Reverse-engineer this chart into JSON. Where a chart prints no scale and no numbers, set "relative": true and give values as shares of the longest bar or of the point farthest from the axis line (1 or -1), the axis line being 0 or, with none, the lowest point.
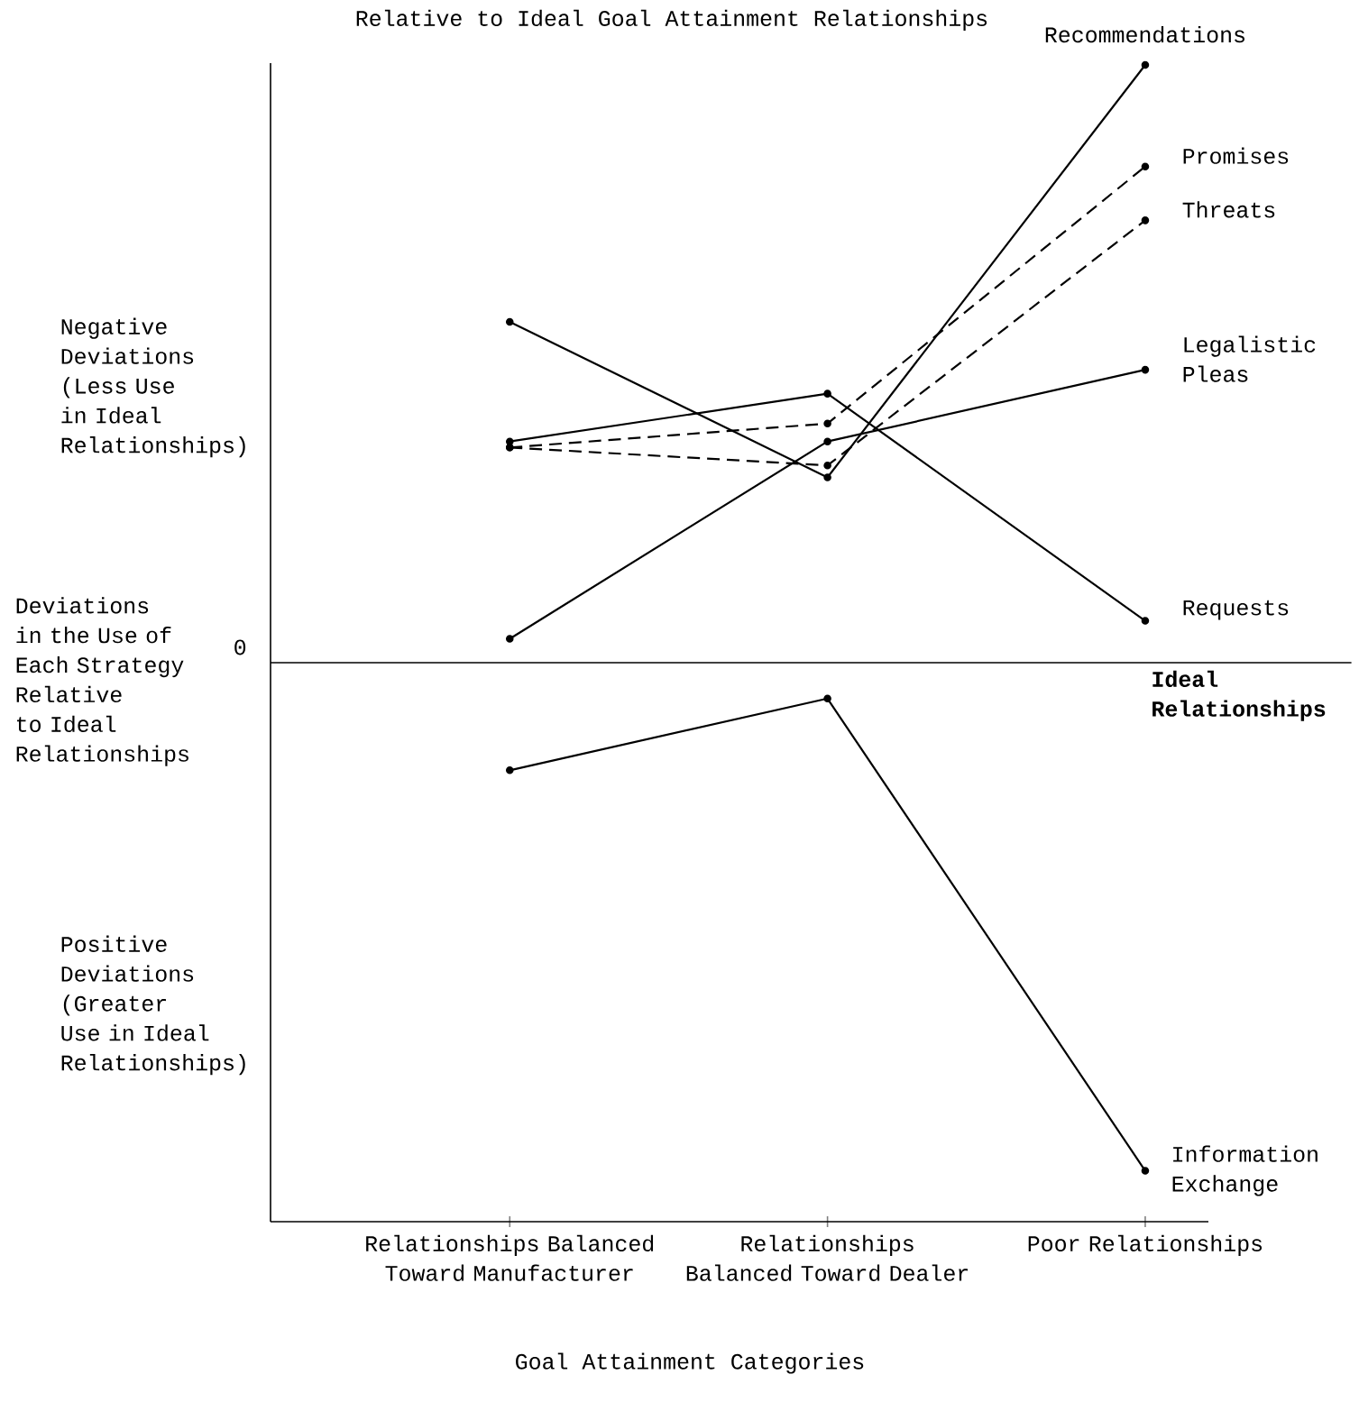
{
  "chart_data": {
    "type": "line",
    "relative": true,
    "title": "Relative to Ideal Goal Attainment Relationships",
    "xlabel": "Goal Attainment Categories",
    "ylabel": "Deviations in the Use of Each Strategy Relative to Ideal Relationships",
    "categories": [
      "Relationships Balanced Toward Manufacturer",
      "Relationships Balanced Toward Dealer",
      "Poor Relationships"
    ],
    "marker": "circle",
    "series": [
      {
        "name": "Recommendations",
        "color": "#000000",
        "values": [
          0.57,
          0.31,
          1
        ]
      },
      {
        "name": "Promises",
        "color": "#000000",
        "line_style": "dashed",
        "values": [
          0.36,
          0.4,
          0.83
        ]
      },
      {
        "name": "Threats",
        "color": "#000000",
        "line_style": "dashed",
        "values": [
          0.36,
          0.33,
          0.74
        ]
      },
      {
        "name": "Legalistic Pleas",
        "color": "#000000",
        "values": [
          0.04,
          0.37,
          0.49
        ]
      },
      {
        "name": "Requests",
        "color": "#000000",
        "values": [
          0.37,
          0.45,
          0.07
        ]
      },
      {
        "name": "Information Exchange",
        "color": "#000000",
        "values": [
          -0.18,
          -0.06,
          -0.85
        ]
      }
    ],
    "ref_lines": [
      {
        "axis": "y",
        "value": 0,
        "label": "Ideal Relationships",
        "color": "#000000"
      }
    ],
    "annotations": [
      "Negative Deviations (Less Use in Ideal Relationships)",
      "Positive Deviations (Greater Use in Ideal Relationships)",
      "0"
    ]
  }
}
